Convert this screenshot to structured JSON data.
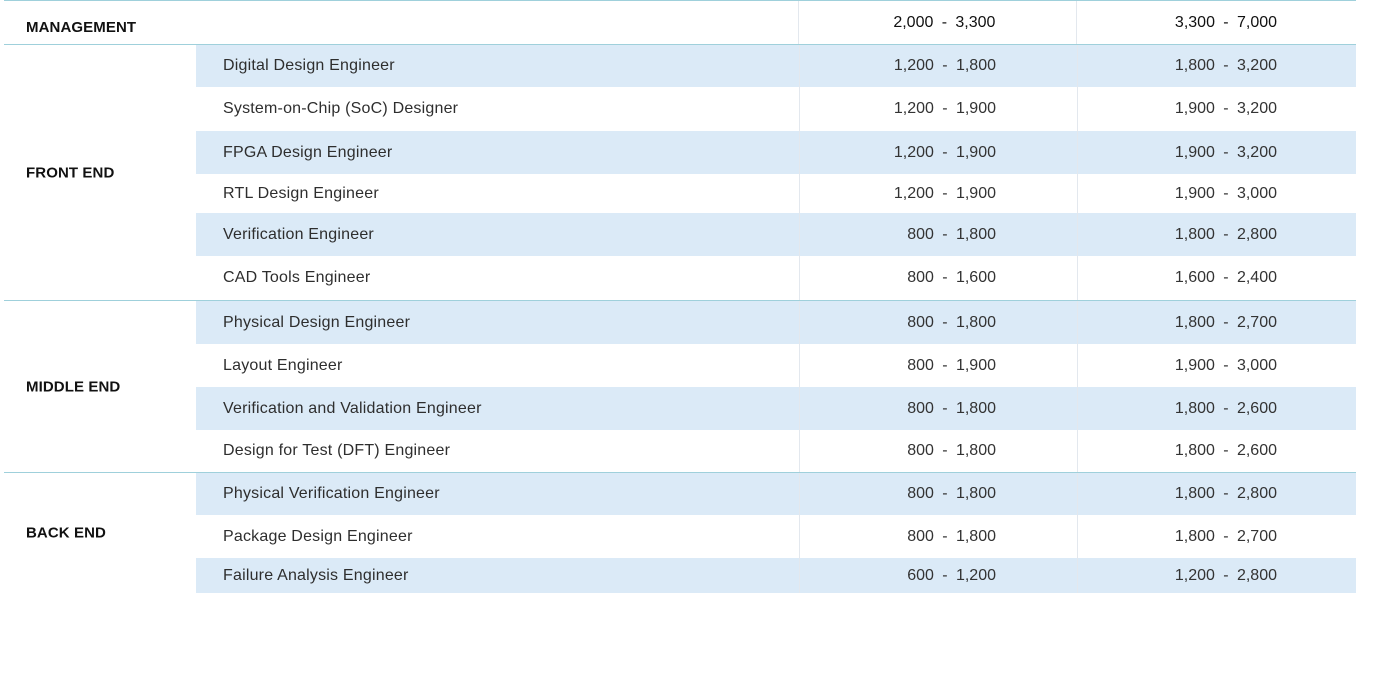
{
  "management": {
    "label": "MANAGEMENT",
    "col1": {
      "lo": "2,000",
      "hi": "3,300"
    },
    "col2": {
      "lo": "3,300",
      "hi": "7,000"
    }
  },
  "sections": [
    {
      "label": "FRONT END",
      "rows": [
        {
          "role": "Digital Design Engineer",
          "col1": {
            "lo": "1,200",
            "hi": "1,800"
          },
          "col2": {
            "lo": "1,800",
            "hi": "3,200"
          }
        },
        {
          "role": "System-on-Chip (SoC) Designer",
          "col1": {
            "lo": "1,200",
            "hi": "1,900"
          },
          "col2": {
            "lo": "1,900",
            "hi": "3,200"
          }
        },
        {
          "role": "FPGA Design Engineer",
          "col1": {
            "lo": "1,200",
            "hi": "1,900"
          },
          "col2": {
            "lo": "1,900",
            "hi": "3,200"
          }
        },
        {
          "role": "RTL Design Engineer",
          "col1": {
            "lo": "1,200",
            "hi": "1,900"
          },
          "col2": {
            "lo": "1,900",
            "hi": "3,000"
          }
        },
        {
          "role": "Verification Engineer",
          "col1": {
            "lo": "800",
            "hi": "1,800"
          },
          "col2": {
            "lo": "1,800",
            "hi": "2,800"
          }
        },
        {
          "role": "CAD Tools Engineer",
          "col1": {
            "lo": "800",
            "hi": "1,600"
          },
          "col2": {
            "lo": "1,600",
            "hi": "2,400"
          }
        }
      ]
    },
    {
      "label": "MIDDLE END",
      "rows": [
        {
          "role": "Physical Design Engineer",
          "col1": {
            "lo": "800",
            "hi": "1,800"
          },
          "col2": {
            "lo": "1,800",
            "hi": "2,700"
          }
        },
        {
          "role": "Layout Engineer",
          "col1": {
            "lo": "800",
            "hi": "1,900"
          },
          "col2": {
            "lo": "1,900",
            "hi": "3,000"
          }
        },
        {
          "role": "Verification and Validation Engineer",
          "col1": {
            "lo": "800",
            "hi": "1,800"
          },
          "col2": {
            "lo": "1,800",
            "hi": "2,600"
          }
        },
        {
          "role": "Design for Test (DFT) Engineer",
          "col1": {
            "lo": "800",
            "hi": "1,800"
          },
          "col2": {
            "lo": "1,800",
            "hi": "2,600"
          }
        }
      ]
    },
    {
      "label": "BACK END",
      "rows": [
        {
          "role": "Physical Verification Engineer",
          "col1": {
            "lo": "800",
            "hi": "1,800"
          },
          "col2": {
            "lo": "1,800",
            "hi": "2,800"
          }
        },
        {
          "role": "Package Design Engineer",
          "col1": {
            "lo": "800",
            "hi": "1,800"
          },
          "col2": {
            "lo": "1,800",
            "hi": "2,700"
          }
        },
        {
          "role": "Failure Analysis Engineer",
          "col1": {
            "lo": "600",
            "hi": "1,200"
          },
          "col2": {
            "lo": "1,200",
            "hi": "2,800"
          }
        }
      ]
    }
  ],
  "range_separator": "-",
  "colors": {
    "row_shade": "#dbeaf7",
    "section_rule": "#9fd0db"
  }
}
